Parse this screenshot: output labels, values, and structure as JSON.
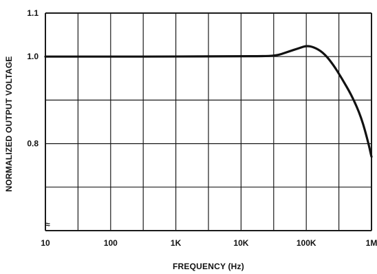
{
  "chart_data": {
    "type": "line",
    "x_scale": "log",
    "xlabel": "FREQUENCY (Hz)",
    "ylabel": "NORMALIZED OUTPUT VOLTAGE",
    "xlim": [
      10,
      1000000
    ],
    "ylim": [
      0.6,
      1.1
    ],
    "x_ticks": [
      {
        "value": 10,
        "label": "10"
      },
      {
        "value": 100,
        "label": "100"
      },
      {
        "value": 1000,
        "label": "1K"
      },
      {
        "value": 10000,
        "label": "10K"
      },
      {
        "value": 100000,
        "label": "100K"
      },
      {
        "value": 1000000,
        "label": "1M"
      }
    ],
    "y_ticks": [
      {
        "value": 1.1,
        "label": "1.1"
      },
      {
        "value": 1.0,
        "label": "1.0"
      },
      {
        "value": 0.8,
        "label": "0.8"
      }
    ],
    "y_break_symbol": "≈",
    "grid": true,
    "series": [
      {
        "color": "#111111",
        "points": [
          [
            10,
            1.0
          ],
          [
            100,
            1.0
          ],
          [
            1000,
            1.0
          ],
          [
            10000,
            1.001
          ],
          [
            20000,
            1.001
          ],
          [
            35000,
            1.002
          ],
          [
            50000,
            1.01
          ],
          [
            80000,
            1.02
          ],
          [
            100000,
            1.025
          ],
          [
            130000,
            1.022
          ],
          [
            180000,
            1.01
          ],
          [
            250000,
            0.985
          ],
          [
            350000,
            0.95
          ],
          [
            500000,
            0.91
          ],
          [
            700000,
            0.86
          ],
          [
            900000,
            0.8
          ],
          [
            1000000,
            0.77
          ]
        ]
      }
    ]
  }
}
